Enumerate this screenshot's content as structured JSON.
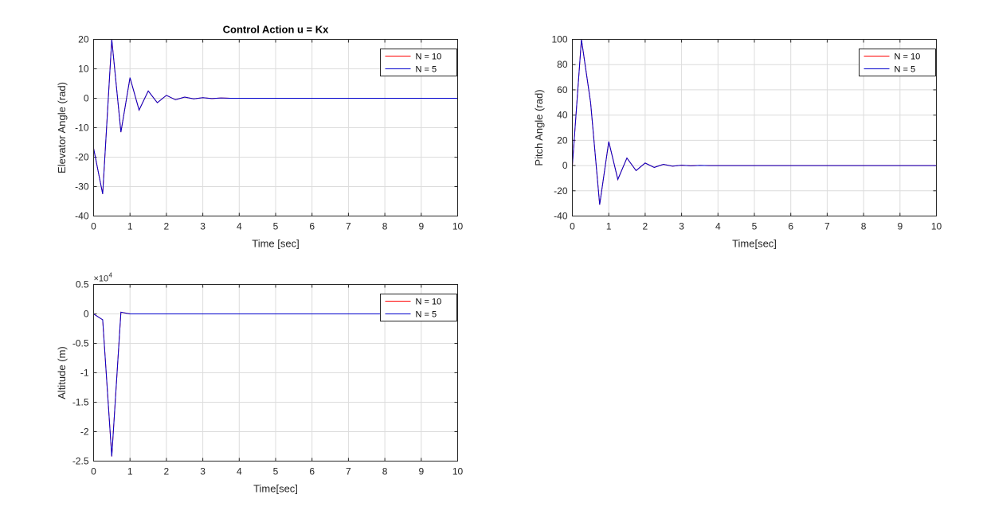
{
  "colors": {
    "n10": "#ff0000",
    "n5": "#0000cc",
    "grid": "#dcdcdc",
    "axis": "#262626"
  },
  "chart_data": [
    {
      "type": "line",
      "title": "Control Action u = Kx",
      "xlabel": "Time [sec]",
      "ylabel": "Elevator Angle (rad)",
      "xlim": [
        0,
        10
      ],
      "ylim": [
        -40,
        20
      ],
      "xticks": [
        "0",
        "1",
        "2",
        "3",
        "4",
        "5",
        "6",
        "7",
        "8",
        "9",
        "10"
      ],
      "yticks": [
        "-40",
        "-30",
        "-20",
        "-10",
        "0",
        "10",
        "20"
      ],
      "grid": true,
      "legend_position": "top-right",
      "series": [
        {
          "name": "N = 10",
          "color": "#ff0000",
          "x": [
            0,
            0.25,
            0.5,
            0.75,
            1,
            1.25,
            1.5,
            1.75,
            2,
            2.25,
            2.5,
            2.75,
            3,
            3.25,
            3.5,
            3.75,
            4,
            10
          ],
          "y": [
            -17,
            -32.5,
            20,
            -11.5,
            7,
            -4,
            2.5,
            -1.5,
            1,
            -0.5,
            0.4,
            -0.2,
            0.2,
            -0.1,
            0.1,
            0,
            0,
            0
          ]
        },
        {
          "name": "N = 5",
          "color": "#0000cc",
          "x": [
            0,
            0.25,
            0.5,
            0.75,
            1,
            1.25,
            1.5,
            1.75,
            2,
            2.25,
            2.5,
            2.75,
            3,
            3.25,
            3.5,
            3.75,
            4,
            10
          ],
          "y": [
            -17,
            -32.5,
            20,
            -11.5,
            7,
            -4,
            2.5,
            -1.5,
            1,
            -0.5,
            0.4,
            -0.2,
            0.2,
            -0.1,
            0.1,
            0,
            0,
            0
          ]
        }
      ]
    },
    {
      "type": "line",
      "title": "",
      "xlabel": "Time[sec]",
      "ylabel": "Pitch Angle (rad)",
      "xlim": [
        0,
        10
      ],
      "ylim": [
        -40,
        100
      ],
      "xticks": [
        "0",
        "1",
        "2",
        "3",
        "4",
        "5",
        "6",
        "7",
        "8",
        "9",
        "10"
      ],
      "yticks": [
        "-40",
        "-20",
        "0",
        "20",
        "40",
        "60",
        "80",
        "100"
      ],
      "grid": true,
      "legend_position": "top-right",
      "series": [
        {
          "name": "N = 10",
          "color": "#ff0000",
          "x": [
            0,
            0.25,
            0.5,
            0.75,
            1,
            1.25,
            1.5,
            1.75,
            2,
            2.25,
            2.5,
            2.75,
            3,
            3.25,
            3.5,
            3.75,
            4,
            10
          ],
          "y": [
            0,
            100,
            50,
            -31,
            19,
            -11,
            6,
            -4,
            2,
            -1.5,
            1,
            -0.5,
            0.3,
            -0.2,
            0.1,
            0,
            0,
            0
          ]
        },
        {
          "name": "N = 5",
          "color": "#0000cc",
          "x": [
            0,
            0.25,
            0.5,
            0.75,
            1,
            1.25,
            1.5,
            1.75,
            2,
            2.25,
            2.5,
            2.75,
            3,
            3.25,
            3.5,
            3.75,
            4,
            10
          ],
          "y": [
            0,
            100,
            50,
            -31,
            19,
            -11,
            6,
            -4,
            2,
            -1.5,
            1,
            -0.5,
            0.3,
            -0.2,
            0.1,
            0,
            0,
            0
          ]
        }
      ]
    },
    {
      "type": "line",
      "title": "",
      "xlabel": "Time[sec]",
      "ylabel": "Altitude (m)",
      "xlim": [
        0,
        10
      ],
      "ylim": [
        -2.5,
        0.5
      ],
      "y_multiplier": "×10",
      "y_multiplier_exponent": "4",
      "xticks": [
        "0",
        "1",
        "2",
        "3",
        "4",
        "5",
        "6",
        "7",
        "8",
        "9",
        "10"
      ],
      "yticks": [
        "-2.5",
        "-2",
        "-1.5",
        "-1",
        "-0.5",
        "0",
        "0.5"
      ],
      "grid": true,
      "legend_position": "top-right",
      "series": [
        {
          "name": "N = 10",
          "color": "#ff0000",
          "x": [
            0,
            0.25,
            0.5,
            0.75,
            1,
            1.25,
            10
          ],
          "y": [
            0,
            -0.1,
            -2.42,
            0.03,
            0,
            0,
            0
          ]
        },
        {
          "name": "N = 5",
          "color": "#0000cc",
          "x": [
            0,
            0.25,
            0.5,
            0.75,
            1,
            1.25,
            10
          ],
          "y": [
            0,
            -0.1,
            -2.42,
            0.03,
            0,
            0,
            0
          ]
        }
      ]
    }
  ]
}
